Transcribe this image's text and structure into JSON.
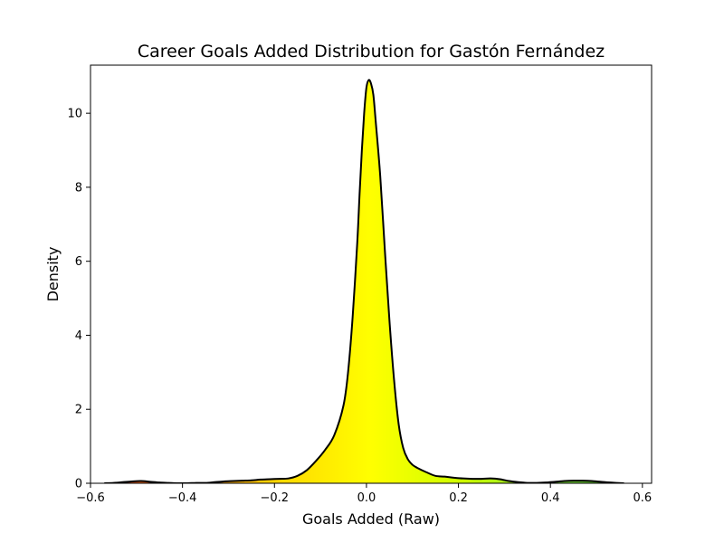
{
  "chart_data": {
    "type": "area",
    "title": "Career Goals Added Distribution for Gastón Fernández",
    "xlabel": "Goals Added (Raw)",
    "ylabel": "Density",
    "xlim": [
      -0.6,
      0.62
    ],
    "ylim": [
      0,
      11.3
    ],
    "x_ticks": [
      -0.6,
      -0.4,
      -0.2,
      0.0,
      0.2,
      0.4,
      0.6
    ],
    "y_ticks": [
      0,
      2,
      4,
      6,
      8,
      10
    ],
    "grid": false,
    "legend": "none",
    "fill_colormap": [
      "#e83a1e",
      "#ff8c1a",
      "#ffd700",
      "#ffff00",
      "#ccff00",
      "#7ad83a",
      "#2e8b1e"
    ],
    "line_color": "#000000",
    "series": [
      {
        "x": [
          -0.57,
          -0.55,
          -0.53,
          -0.51,
          -0.49,
          -0.47,
          -0.45,
          -0.43,
          -0.41,
          -0.39,
          -0.37,
          -0.35,
          -0.33,
          -0.31,
          -0.29,
          -0.27,
          -0.25,
          -0.23,
          -0.21,
          -0.19,
          -0.17,
          -0.15,
          -0.13,
          -0.11,
          -0.09,
          -0.07,
          -0.05,
          -0.04,
          -0.03,
          -0.02,
          -0.015,
          -0.01,
          -0.005,
          0.0,
          0.005,
          0.01,
          0.015,
          0.02,
          0.03,
          0.04,
          0.05,
          0.06,
          0.07,
          0.08,
          0.09,
          0.1,
          0.11,
          0.13,
          0.15,
          0.17,
          0.19,
          0.21,
          0.23,
          0.25,
          0.27,
          0.29,
          0.31,
          0.33,
          0.35,
          0.37,
          0.39,
          0.41,
          0.43,
          0.45,
          0.47,
          0.49,
          0.51,
          0.53,
          0.56
        ],
        "y": [
          0.0,
          0.01,
          0.03,
          0.05,
          0.06,
          0.04,
          0.02,
          0.01,
          0.0,
          0.0,
          0.01,
          0.01,
          0.03,
          0.05,
          0.06,
          0.07,
          0.08,
          0.1,
          0.11,
          0.12,
          0.13,
          0.2,
          0.35,
          0.6,
          0.9,
          1.3,
          2.1,
          3.0,
          4.5,
          6.5,
          7.8,
          9.0,
          10.0,
          10.7,
          10.9,
          10.8,
          10.5,
          9.8,
          8.3,
          6.3,
          4.4,
          2.8,
          1.6,
          0.95,
          0.65,
          0.5,
          0.42,
          0.3,
          0.2,
          0.18,
          0.15,
          0.13,
          0.12,
          0.12,
          0.13,
          0.11,
          0.06,
          0.03,
          0.01,
          0.01,
          0.02,
          0.04,
          0.06,
          0.07,
          0.07,
          0.06,
          0.04,
          0.02,
          0.0
        ]
      }
    ]
  }
}
